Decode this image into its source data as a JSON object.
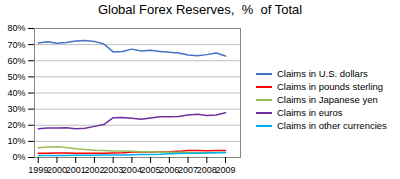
{
  "chart_data": {
    "type": "line",
    "title": "Global Forex Reserves,  %  of Total",
    "x": [
      1999.0,
      1999.5,
      2000.0,
      2000.5,
      2001.0,
      2001.5,
      2002.0,
      2002.5,
      2003.0,
      2003.5,
      2004.0,
      2004.5,
      2005.0,
      2005.5,
      2006.0,
      2006.5,
      2007.0,
      2007.5,
      2008.0,
      2008.5,
      2009.0
    ],
    "series": [
      {
        "name": "Claims in U.S. dollars",
        "color": "#4472C4",
        "values": [
          0.71,
          0.718,
          0.708,
          0.713,
          0.722,
          0.726,
          0.72,
          0.704,
          0.655,
          0.657,
          0.672,
          0.66,
          0.665,
          0.658,
          0.652,
          0.648,
          0.635,
          0.631,
          0.638,
          0.648,
          0.629
        ]
      },
      {
        "name": "Claims in pounds sterling",
        "color": "#FF0000",
        "values": [
          0.026,
          0.027,
          0.028,
          0.028,
          0.027,
          0.026,
          0.026,
          0.027,
          0.028,
          0.03,
          0.034,
          0.034,
          0.034,
          0.034,
          0.035,
          0.038,
          0.043,
          0.044,
          0.042,
          0.044,
          0.043
        ]
      },
      {
        "name": "Claims in Japanese yen",
        "color": "#9BBB59",
        "values": [
          0.06,
          0.065,
          0.067,
          0.062,
          0.055,
          0.05,
          0.045,
          0.044,
          0.04,
          0.04,
          0.039,
          0.036,
          0.035,
          0.032,
          0.033,
          0.032,
          0.031,
          0.03,
          0.03,
          0.031,
          0.031
        ]
      },
      {
        "name": "Claims in euros",
        "color": "#7030A0",
        "values": [
          0.179,
          0.183,
          0.183,
          0.184,
          0.179,
          0.182,
          0.193,
          0.204,
          0.247,
          0.248,
          0.244,
          0.237,
          0.245,
          0.252,
          0.252,
          0.254,
          0.263,
          0.268,
          0.261,
          0.264,
          0.278
        ]
      },
      {
        "name": "Claims in other currencies",
        "color": "#00B0F0",
        "values": [
          0.013,
          0.013,
          0.013,
          0.013,
          0.014,
          0.014,
          0.014,
          0.015,
          0.016,
          0.016,
          0.017,
          0.018,
          0.019,
          0.02,
          0.024,
          0.025,
          0.026,
          0.027,
          0.028,
          0.03,
          0.031
        ]
      }
    ],
    "xlim": [
      1998.8,
      2009.8
    ],
    "xticks": [
      1999,
      2000,
      2001,
      2002,
      2003,
      2004,
      2005,
      2006,
      2007,
      2008,
      2009
    ],
    "ylim": [
      0,
      0.8
    ],
    "yticks": [
      {
        "value": 0.0,
        "label": "0%"
      },
      {
        "value": 0.1,
        "label": "10%"
      },
      {
        "value": 0.2,
        "label": "20%"
      },
      {
        "value": 0.3,
        "label": "30%"
      },
      {
        "value": 0.4,
        "label": "40%"
      },
      {
        "value": 0.5,
        "label": "50%"
      },
      {
        "value": 0.6,
        "label": "60%"
      },
      {
        "value": 0.7,
        "label": "70%"
      },
      {
        "value": 0.8,
        "label": "80%"
      }
    ],
    "grid": true,
    "legend": "right"
  }
}
